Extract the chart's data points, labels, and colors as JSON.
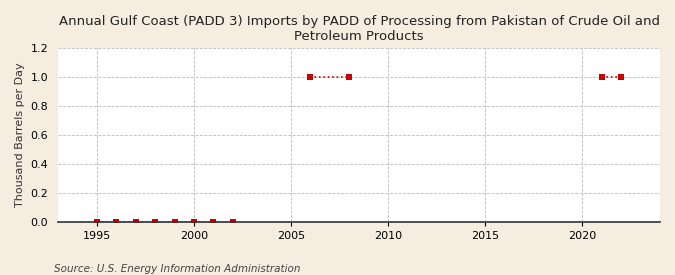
{
  "title": "Annual Gulf Coast (PADD 3) Imports by PADD of Processing from Pakistan of Crude Oil and\nPetroleum Products",
  "ylabel": "Thousand Barrels per Day",
  "source": "Source: U.S. Energy Information Administration",
  "background_color": "#f5ede0",
  "plot_background_color": "#ffffff",
  "segments": [
    {
      "years": [
        1995,
        1996,
        1997,
        1998,
        1999,
        2000,
        2001,
        2002
      ],
      "values": [
        0,
        0,
        0,
        0,
        0,
        0,
        0,
        0
      ]
    },
    {
      "years": [
        2006,
        2008
      ],
      "values": [
        1.0,
        1.0
      ]
    },
    {
      "years": [
        2021,
        2022
      ],
      "values": [
        1.0,
        1.0
      ]
    }
  ],
  "marker_color": "#cc0000",
  "line_color": "#cc0000",
  "line_style": ":",
  "line_width": 1.2,
  "marker_size": 4,
  "xmin": 1993,
  "xmax": 2024,
  "ymin": 0.0,
  "ymax": 1.2,
  "yticks": [
    0.0,
    0.2,
    0.4,
    0.6,
    0.8,
    1.0,
    1.2
  ],
  "xticks": [
    1995,
    2000,
    2005,
    2010,
    2015,
    2020
  ],
  "grid_color": "#aaaaaa",
  "grid_style": "--",
  "title_fontsize": 9.5,
  "axis_fontsize": 8,
  "source_fontsize": 7.5
}
